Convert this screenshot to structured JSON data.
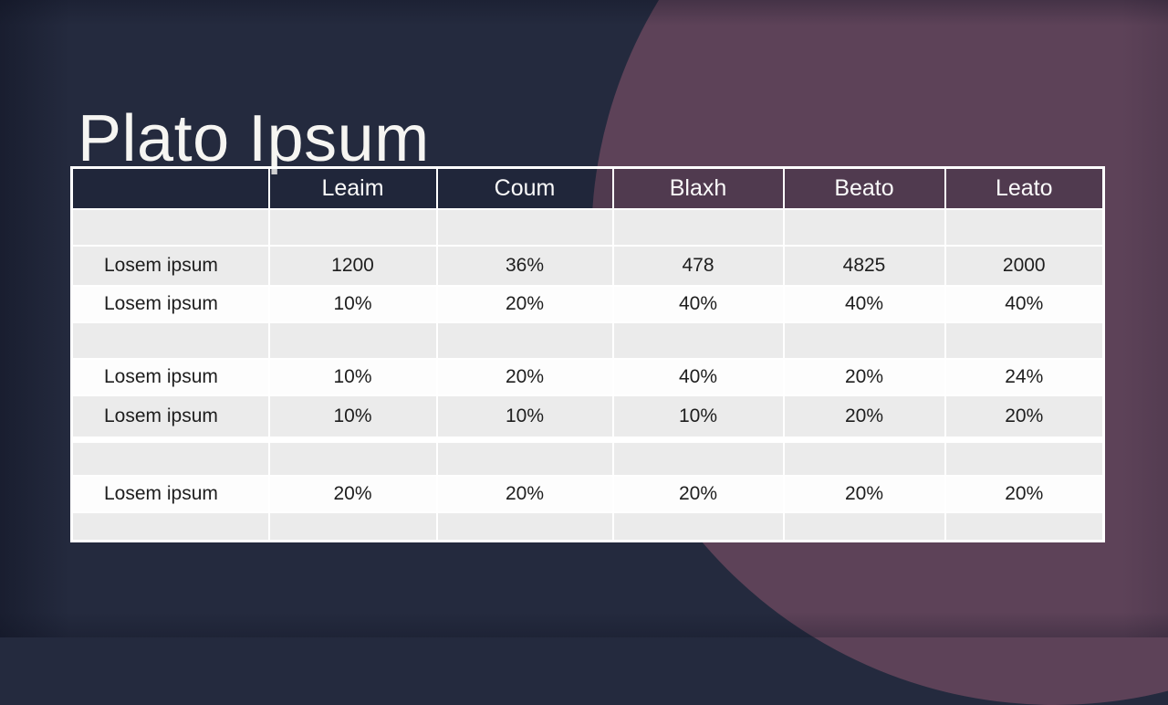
{
  "slide": {
    "title": "Plato Ipsum"
  },
  "table": {
    "columns": [
      "",
      "Leaim",
      "Coum",
      "Blaxh",
      "Beato",
      "Leato"
    ],
    "rows": [
      {
        "label": "",
        "values": [
          "",
          "",
          "",
          "",
          ""
        ],
        "shade": "gray"
      },
      {
        "label": "Losem ipsum",
        "values": [
          "1200",
          "36%",
          "478",
          "4825",
          "2000"
        ],
        "shade": "gray"
      },
      {
        "label": "Losem ipsum",
        "values": [
          "10%",
          "20%",
          "40%",
          "40%",
          "40%"
        ],
        "shade": "white"
      },
      {
        "label": "",
        "values": [
          "",
          "",
          "",
          "",
          ""
        ],
        "shade": "gray"
      },
      {
        "label": "Losem ipsum",
        "values": [
          "10%",
          "20%",
          "40%",
          "20%",
          "24%"
        ],
        "shade": "white"
      },
      {
        "label": "Losem ipsum",
        "values": [
          "10%",
          "10%",
          "10%",
          "20%",
          "20%"
        ],
        "shade": "gray"
      },
      {
        "label": "",
        "values": [
          "",
          "",
          "",
          "",
          ""
        ],
        "shade": "gray"
      },
      {
        "label": "Losem ipsum",
        "values": [
          "20%",
          "20%",
          "20%",
          "20%",
          "20%"
        ],
        "shade": "white"
      },
      {
        "label": "",
        "values": [
          "",
          "",
          "",
          "",
          ""
        ],
        "shade": "gray"
      }
    ]
  },
  "theme": {
    "background_navy": "#242a3e",
    "circle_plum": "#5d4258",
    "row_gray": "#ebebeb",
    "row_white": "#fdfdfd",
    "table_border": "#ffffff",
    "header_text": "#fafafa",
    "body_text": "#1e1e1e",
    "title_text": "#f6f5f2"
  }
}
